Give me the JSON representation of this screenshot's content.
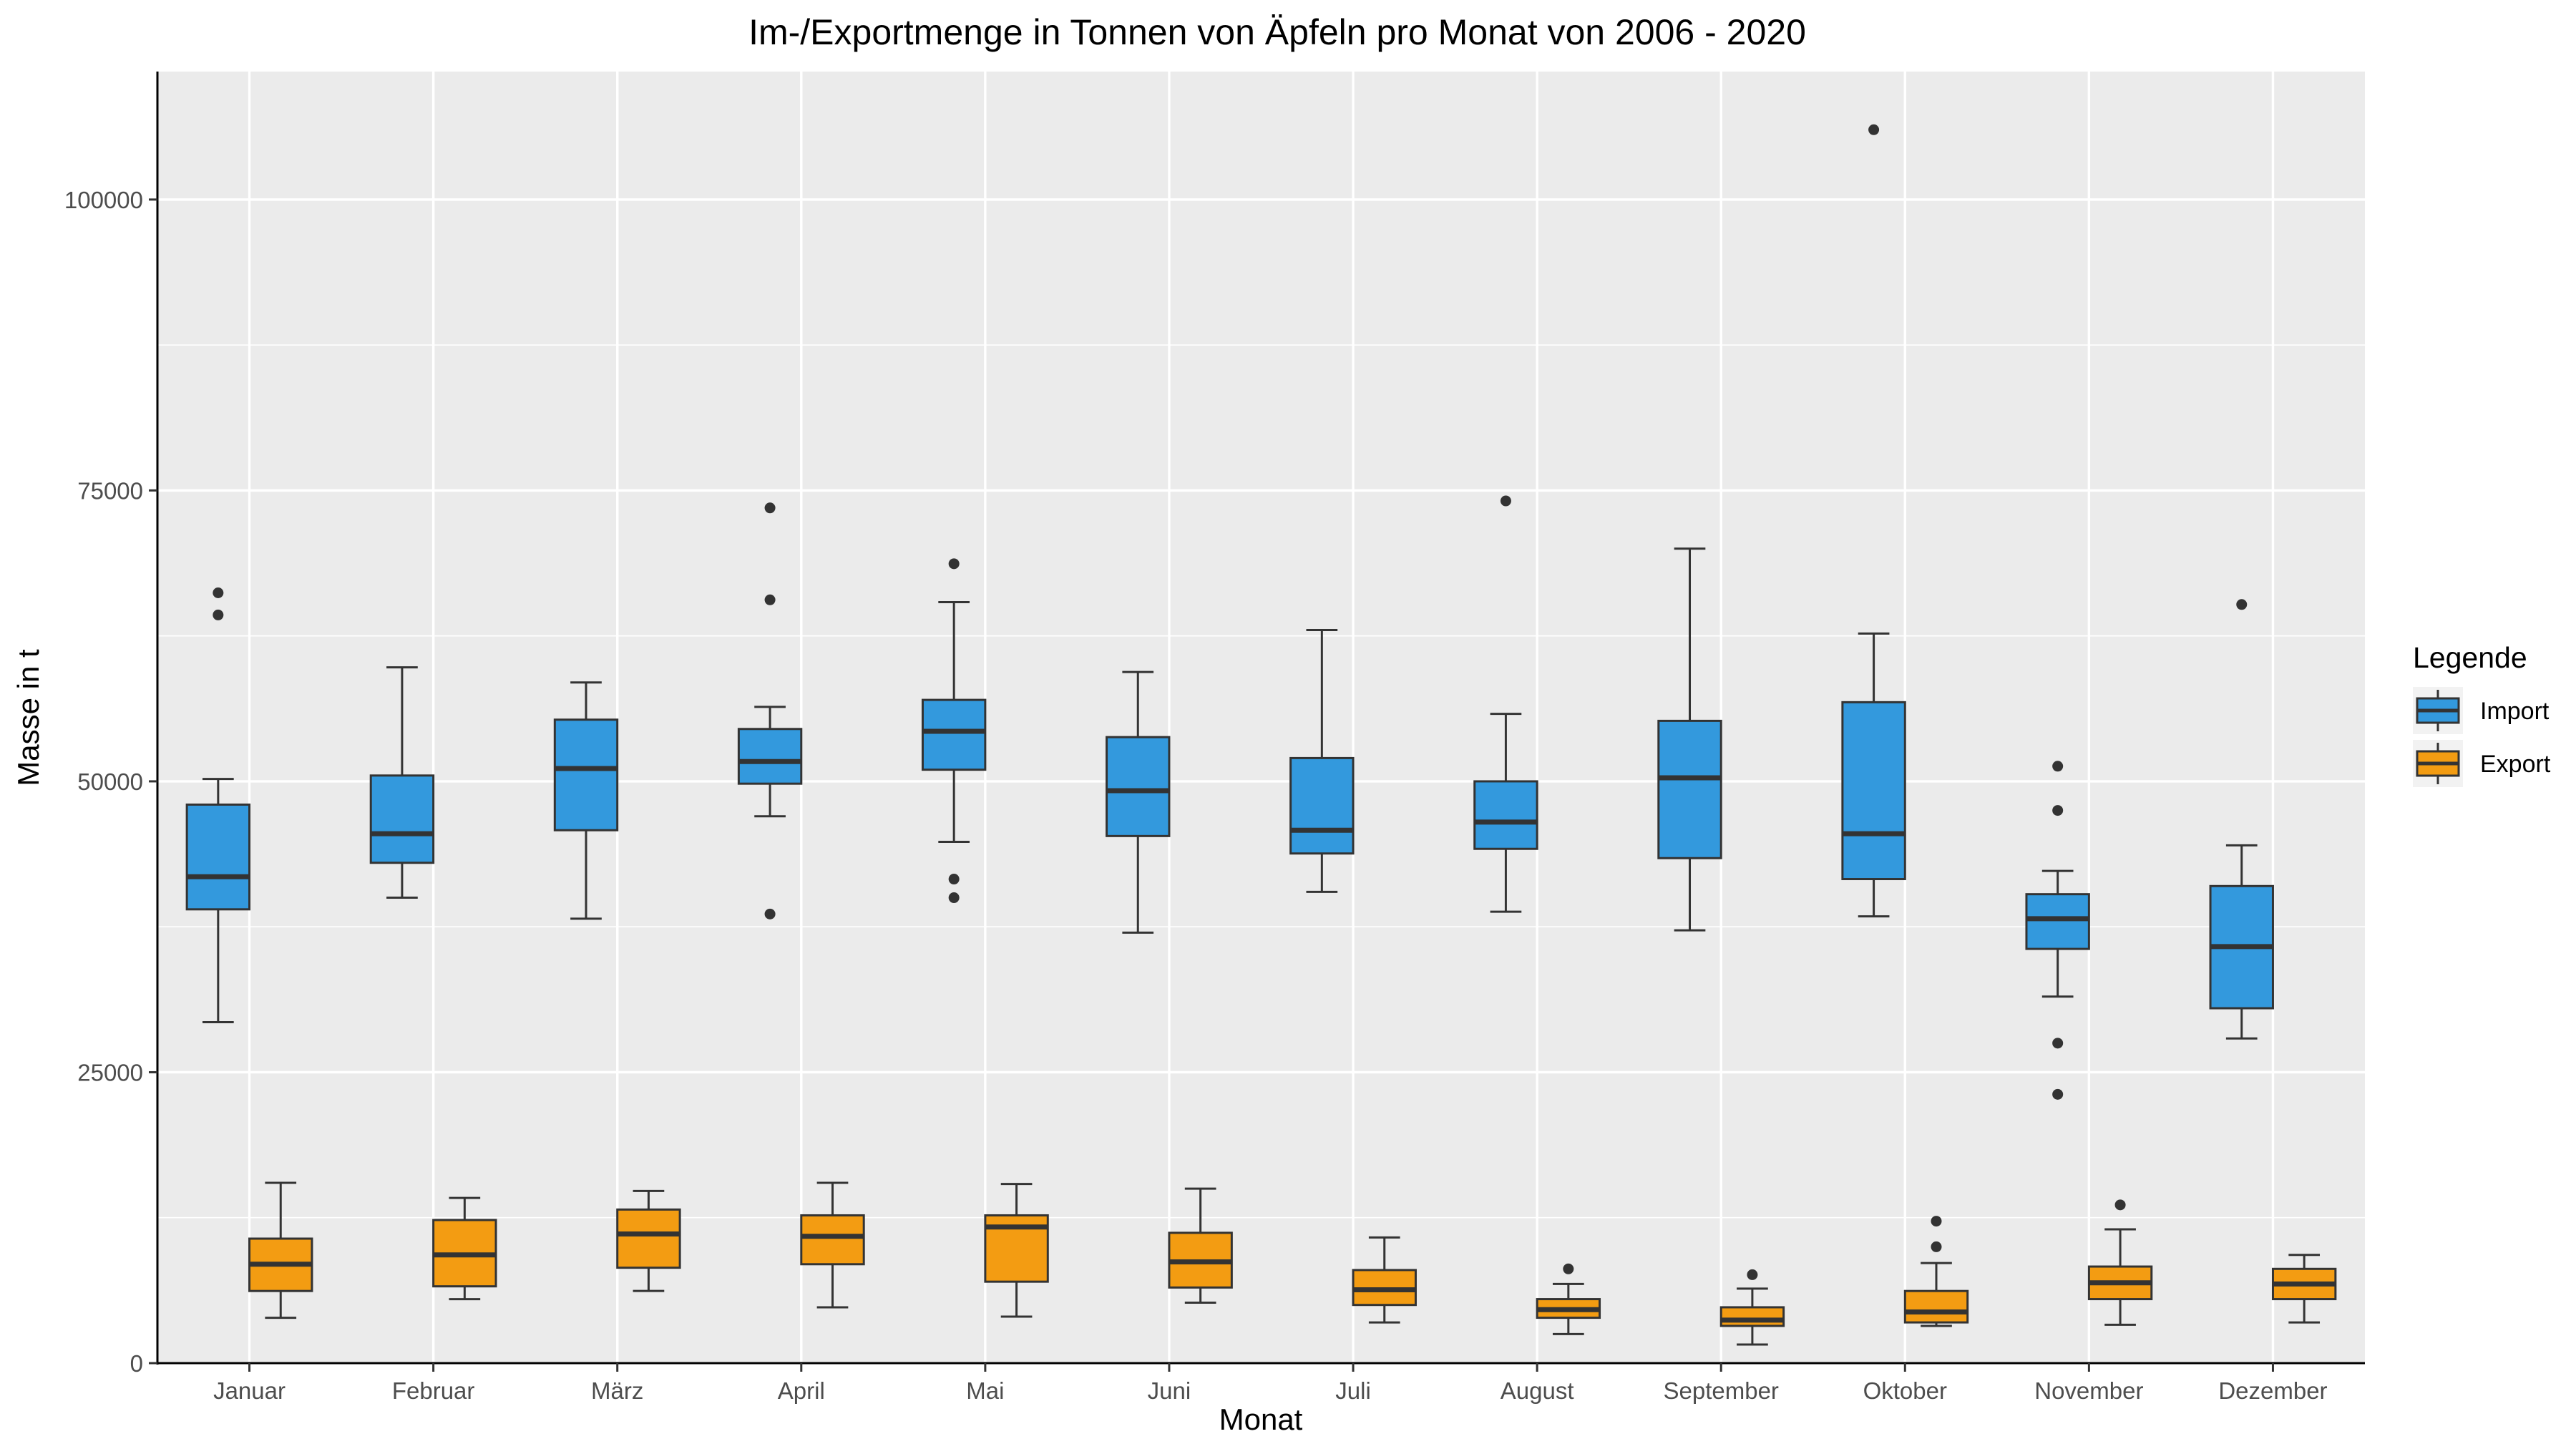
{
  "chart_data": {
    "type": "boxplot",
    "title": "Im-/Exportmenge in Tonnen von Äpfeln pro Monat von 2006 - 2020",
    "xlabel": "Monat",
    "ylabel": "Masse in t",
    "ylim": [
      0,
      111000
    ],
    "yticks": [
      0,
      25000,
      50000,
      75000,
      100000
    ],
    "ytick_labels": [
      "0",
      "25000",
      "50000",
      "75000",
      "100000"
    ],
    "grid": true,
    "categories": [
      "Januar",
      "Februar",
      "März",
      "April",
      "Mai",
      "Juni",
      "Juli",
      "August",
      "September",
      "Oktober",
      "November",
      "Dezember"
    ],
    "legend": {
      "title": "Legende",
      "position": "right"
    },
    "series": [
      {
        "name": "Import",
        "color": "#3399dd",
        "boxes": [
          {
            "min": 29300,
            "q1": 39000,
            "median": 41800,
            "q3": 48000,
            "max": 50200,
            "outliers": [
              64300,
              66200
            ]
          },
          {
            "min": 40000,
            "q1": 43000,
            "median": 45500,
            "q3": 50500,
            "max": 59800,
            "outliers": []
          },
          {
            "min": 38200,
            "q1": 45800,
            "median": 51100,
            "q3": 55300,
            "max": 58500,
            "outliers": []
          },
          {
            "min": 47000,
            "q1": 49800,
            "median": 51700,
            "q3": 54500,
            "max": 56400,
            "outliers": [
              38600,
              65600,
              73500
            ]
          },
          {
            "min": 44800,
            "q1": 51000,
            "median": 54300,
            "q3": 57000,
            "max": 65400,
            "outliers": [
              40000,
              41600,
              68700
            ]
          },
          {
            "min": 37000,
            "q1": 45300,
            "median": 49200,
            "q3": 53800,
            "max": 59400,
            "outliers": []
          },
          {
            "min": 40500,
            "q1": 43800,
            "median": 45800,
            "q3": 52000,
            "max": 63000,
            "outliers": []
          },
          {
            "min": 38800,
            "q1": 44200,
            "median": 46500,
            "q3": 50000,
            "max": 55800,
            "outliers": [
              74100
            ]
          },
          {
            "min": 37200,
            "q1": 43400,
            "median": 50300,
            "q3": 55200,
            "max": 70000,
            "outliers": []
          },
          {
            "min": 38400,
            "q1": 41600,
            "median": 45500,
            "q3": 56800,
            "max": 62700,
            "outliers": [
              106000
            ]
          },
          {
            "min": 31500,
            "q1": 35600,
            "median": 38200,
            "q3": 40300,
            "max": 42300,
            "outliers": [
              23100,
              27500,
              47500,
              51300
            ]
          },
          {
            "min": 27900,
            "q1": 30500,
            "median": 35800,
            "q3": 41000,
            "max": 44500,
            "outliers": [
              65200
            ]
          }
        ]
      },
      {
        "name": "Export",
        "color": "#f39c12",
        "boxes": [
          {
            "min": 3900,
            "q1": 6200,
            "median": 8500,
            "q3": 10700,
            "max": 15500,
            "outliers": []
          },
          {
            "min": 5500,
            "q1": 6600,
            "median": 9300,
            "q3": 12300,
            "max": 14200,
            "outliers": []
          },
          {
            "min": 6200,
            "q1": 8200,
            "median": 11100,
            "q3": 13200,
            "max": 14800,
            "outliers": []
          },
          {
            "min": 4800,
            "q1": 8500,
            "median": 10900,
            "q3": 12700,
            "max": 15500,
            "outliers": []
          },
          {
            "min": 4000,
            "q1": 7000,
            "median": 11700,
            "q3": 12700,
            "max": 15400,
            "outliers": []
          },
          {
            "min": 5200,
            "q1": 6500,
            "median": 8700,
            "q3": 11200,
            "max": 15000,
            "outliers": []
          },
          {
            "min": 3500,
            "q1": 5000,
            "median": 6300,
            "q3": 8000,
            "max": 10800,
            "outliers": []
          },
          {
            "min": 2500,
            "q1": 3900,
            "median": 4600,
            "q3": 5500,
            "max": 6800,
            "outliers": [
              8100
            ]
          },
          {
            "min": 1600,
            "q1": 3200,
            "median": 3700,
            "q3": 4800,
            "max": 6400,
            "outliers": [
              7600
            ]
          },
          {
            "min": 3200,
            "q1": 3500,
            "median": 4400,
            "q3": 6200,
            "max": 8600,
            "outliers": [
              10000,
              12200
            ]
          },
          {
            "min": 3300,
            "q1": 5500,
            "median": 6900,
            "q3": 8300,
            "max": 11500,
            "outliers": [
              13600
            ]
          },
          {
            "min": 3500,
            "q1": 5500,
            "median": 6800,
            "q3": 8100,
            "max": 9300,
            "outliers": []
          }
        ]
      }
    ]
  }
}
